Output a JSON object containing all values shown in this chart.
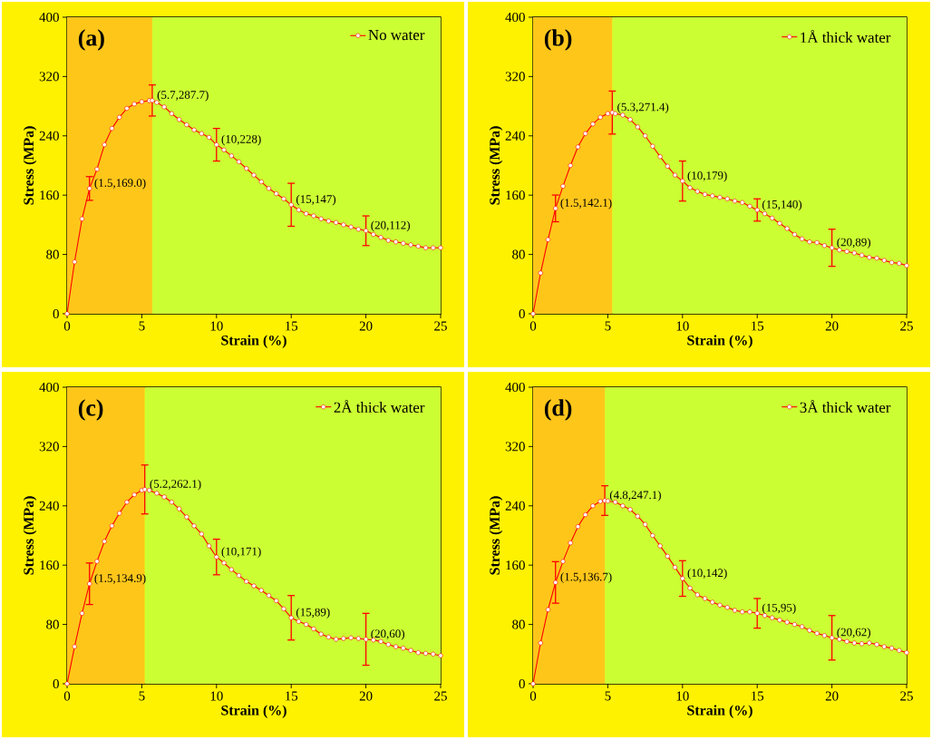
{
  "chart_data": [
    {
      "type": "line",
      "title": "(a)",
      "xlabel": "Strain (%)",
      "ylabel": "Stress (MPa)",
      "xlim": [
        0,
        25
      ],
      "ylim": [
        0,
        400
      ],
      "xticks": [
        0,
        5,
        10,
        15,
        20,
        25
      ],
      "yticks": [
        0,
        80,
        160,
        240,
        320,
        400
      ],
      "legend": "top right",
      "marker": "circle",
      "bands": [
        {
          "axis": "x",
          "from": 0,
          "to": 5.7,
          "color": "#ffc61a"
        },
        {
          "axis": "x",
          "from": 5.7,
          "to": 25,
          "color": "#ccff33"
        }
      ],
      "series": [
        {
          "name": "No water",
          "color": "#ff0000",
          "x": [
            0,
            0.5,
            1,
            1.5,
            2,
            2.5,
            3,
            3.5,
            4,
            4.5,
            5,
            5.5,
            5.7,
            6,
            6.5,
            7,
            7.5,
            8,
            8.5,
            9,
            9.5,
            10,
            10.5,
            11,
            11.5,
            12,
            12.5,
            13,
            13.5,
            14,
            14.5,
            15,
            15.5,
            16,
            16.5,
            17,
            17.5,
            18,
            18.5,
            19,
            19.5,
            20,
            20.5,
            21,
            21.5,
            22,
            22.5,
            23,
            23.5,
            24,
            24.5,
            25
          ],
          "values": [
            0,
            70,
            128,
            169,
            195,
            228,
            250,
            265,
            277,
            283,
            286,
            287.5,
            287.7,
            285,
            279,
            270,
            262,
            255,
            248,
            243,
            238,
            228,
            221,
            213,
            205,
            196,
            187,
            178,
            169,
            162,
            155,
            147,
            140,
            135,
            132,
            128,
            125,
            123,
            120,
            117,
            114,
            112,
            107,
            103,
            99,
            97,
            95,
            93,
            91,
            89,
            89,
            89
          ],
          "errors": [
            null,
            null,
            null,
            16,
            null,
            null,
            null,
            null,
            null,
            null,
            null,
            null,
            21,
            null,
            null,
            null,
            null,
            null,
            null,
            null,
            null,
            22,
            null,
            null,
            null,
            null,
            null,
            null,
            null,
            null,
            null,
            29,
            null,
            null,
            null,
            null,
            null,
            null,
            null,
            null,
            null,
            20,
            null,
            null,
            null,
            null,
            null,
            null,
            null,
            null,
            null,
            null
          ]
        }
      ],
      "annotations": [
        {
          "text": "(1.5,169.0)",
          "x": 1.5,
          "y": 169.0
        },
        {
          "text": "(5.7,287.7)",
          "x": 5.7,
          "y": 287.7
        },
        {
          "text": "(10,228)",
          "x": 10,
          "y": 228
        },
        {
          "text": "(15,147)",
          "x": 15,
          "y": 147
        },
        {
          "text": "(20,112)",
          "x": 20,
          "y": 112
        }
      ]
    },
    {
      "type": "line",
      "title": "(b)",
      "xlabel": "Strain (%)",
      "ylabel": "Stress (MPa)",
      "xlim": [
        0,
        25
      ],
      "ylim": [
        0,
        400
      ],
      "xticks": [
        0,
        5,
        10,
        15,
        20,
        25
      ],
      "yticks": [
        0,
        80,
        160,
        240,
        320,
        400
      ],
      "legend": "top right",
      "marker": "circle",
      "bands": [
        {
          "axis": "x",
          "from": 0,
          "to": 5.3,
          "color": "#ffc61a"
        },
        {
          "axis": "x",
          "from": 5.3,
          "to": 25,
          "color": "#ccff33"
        }
      ],
      "series": [
        {
          "name": "1Å thick water",
          "color": "#ff0000",
          "x": [
            0,
            0.5,
            1,
            1.5,
            2,
            2.5,
            3,
            3.5,
            4,
            4.5,
            5,
            5.3,
            5.5,
            6,
            6.5,
            7,
            7.5,
            8,
            8.5,
            9,
            9.5,
            10,
            10.5,
            11,
            11.5,
            12,
            12.5,
            13,
            13.5,
            14,
            14.5,
            15,
            15.5,
            16,
            16.5,
            17,
            17.5,
            18,
            18.5,
            19,
            19.5,
            20,
            20.5,
            21,
            21.5,
            22,
            22.5,
            23,
            23.5,
            24,
            24.5,
            25
          ],
          "values": [
            0,
            55,
            100,
            142.1,
            172,
            200,
            225,
            243,
            256,
            265,
            270,
            271.4,
            270,
            268,
            262,
            252,
            240,
            226,
            212,
            199,
            187,
            179,
            170,
            165,
            161,
            159,
            157,
            155,
            152,
            150,
            145,
            140,
            135,
            129,
            122,
            115,
            107,
            101,
            97,
            96,
            92,
            89,
            86,
            84,
            82,
            79,
            76,
            75,
            72,
            69,
            68,
            65
          ],
          "errors": [
            null,
            null,
            null,
            18,
            null,
            null,
            null,
            null,
            null,
            null,
            null,
            29,
            null,
            null,
            null,
            null,
            null,
            null,
            null,
            null,
            null,
            27,
            null,
            null,
            null,
            null,
            null,
            null,
            null,
            null,
            null,
            15,
            null,
            null,
            null,
            null,
            null,
            null,
            null,
            null,
            null,
            25,
            null,
            null,
            null,
            null,
            null,
            null,
            null,
            null,
            null,
            null
          ]
        }
      ],
      "annotations": [
        {
          "text": "(1.5,142.1)",
          "x": 1.5,
          "y": 142.1
        },
        {
          "text": "(5.3,271.4)",
          "x": 5.3,
          "y": 271.4
        },
        {
          "text": "(10,179)",
          "x": 10,
          "y": 179
        },
        {
          "text": "(15,140)",
          "x": 15,
          "y": 140
        },
        {
          "text": "(20,89)",
          "x": 20,
          "y": 89
        }
      ]
    },
    {
      "type": "line",
      "title": "(c)",
      "xlabel": "Strain (%)",
      "ylabel": "Stress (MPa)",
      "xlim": [
        0,
        25
      ],
      "ylim": [
        0,
        400
      ],
      "xticks": [
        0,
        5,
        10,
        15,
        20,
        25
      ],
      "yticks": [
        0,
        80,
        160,
        240,
        320,
        400
      ],
      "legend": "top right",
      "marker": "circle",
      "bands": [
        {
          "axis": "x",
          "from": 0,
          "to": 5.2,
          "color": "#ffc61a"
        },
        {
          "axis": "x",
          "from": 5.2,
          "to": 25,
          "color": "#ccff33"
        }
      ],
      "series": [
        {
          "name": "2Å thick water",
          "color": "#ff0000",
          "x": [
            0,
            0.5,
            1,
            1.5,
            2,
            2.5,
            3,
            3.5,
            4,
            4.5,
            5,
            5.2,
            5.5,
            6,
            6.5,
            7,
            7.5,
            8,
            8.5,
            9,
            9.5,
            10,
            10.5,
            11,
            11.5,
            12,
            12.5,
            13,
            13.5,
            14,
            14.5,
            15,
            15.5,
            16,
            16.5,
            17,
            17.5,
            18,
            18.5,
            19,
            19.5,
            20,
            20.5,
            21,
            21.5,
            22,
            22.5,
            23,
            23.5,
            24,
            24.5,
            25
          ],
          "values": [
            0,
            50,
            95,
            134.9,
            165,
            192,
            213,
            230,
            245,
            255,
            261,
            262.1,
            261,
            257,
            252,
            245,
            236,
            225,
            213,
            202,
            186,
            171,
            163,
            154,
            146,
            138,
            132,
            126,
            119,
            112,
            101,
            89,
            84,
            80,
            74,
            67,
            63,
            60,
            61,
            62,
            61,
            60,
            59,
            57,
            53,
            50,
            48,
            45,
            42,
            41,
            40,
            38
          ],
          "errors": [
            null,
            null,
            null,
            28,
            null,
            null,
            null,
            null,
            null,
            null,
            null,
            33,
            null,
            null,
            null,
            null,
            null,
            null,
            null,
            null,
            null,
            24,
            null,
            null,
            null,
            null,
            null,
            null,
            null,
            null,
            null,
            30,
            null,
            null,
            null,
            null,
            null,
            null,
            null,
            null,
            null,
            35,
            null,
            null,
            null,
            null,
            null,
            null,
            null,
            null,
            null,
            null
          ]
        }
      ],
      "annotations": [
        {
          "text": "(1.5,134.9)",
          "x": 1.5,
          "y": 134.9
        },
        {
          "text": "(5.2,262.1)",
          "x": 5.2,
          "y": 262.1
        },
        {
          "text": "(10,171)",
          "x": 10,
          "y": 171
        },
        {
          "text": "(15,89)",
          "x": 15,
          "y": 89
        },
        {
          "text": "(20,60)",
          "x": 20,
          "y": 60
        }
      ]
    },
    {
      "type": "line",
      "title": "(d)",
      "xlabel": "Strain (%)",
      "ylabel": "Stress (MPa)",
      "xlim": [
        0,
        25
      ],
      "ylim": [
        0,
        400
      ],
      "xticks": [
        0,
        5,
        10,
        15,
        20,
        25
      ],
      "yticks": [
        0,
        80,
        160,
        240,
        320,
        400
      ],
      "legend": "top right",
      "marker": "circle",
      "bands": [
        {
          "axis": "x",
          "from": 0,
          "to": 4.8,
          "color": "#ffc61a"
        },
        {
          "axis": "x",
          "from": 4.8,
          "to": 25,
          "color": "#ccff33"
        }
      ],
      "series": [
        {
          "name": "3Å thick water",
          "color": "#ff0000",
          "x": [
            0,
            0.5,
            1,
            1.5,
            2,
            2.5,
            3,
            3.5,
            4,
            4.5,
            4.8,
            5,
            5.5,
            6,
            6.5,
            7,
            7.5,
            8,
            8.5,
            9,
            9.5,
            10,
            10.5,
            11,
            11.5,
            12,
            12.5,
            13,
            13.5,
            14,
            14.5,
            15,
            15.5,
            16,
            16.5,
            17,
            17.5,
            18,
            18.5,
            19,
            19.5,
            20,
            20.5,
            21,
            21.5,
            22,
            22.5,
            23,
            23.5,
            24,
            24.5,
            25
          ],
          "values": [
            0,
            55,
            100,
            136.7,
            165,
            190,
            212,
            228,
            240,
            246,
            247.1,
            246.5,
            245,
            240,
            235,
            226,
            215,
            200,
            186,
            172,
            157,
            142,
            129,
            120,
            115,
            110,
            106,
            103,
            99,
            97,
            97,
            95,
            92,
            89,
            86,
            83,
            80,
            77,
            72,
            68,
            65,
            62,
            60,
            57,
            55,
            54,
            55,
            53,
            50,
            48,
            45,
            42
          ],
          "errors": [
            null,
            null,
            null,
            28,
            null,
            null,
            null,
            null,
            null,
            null,
            20,
            null,
            null,
            null,
            null,
            null,
            null,
            null,
            null,
            null,
            null,
            24,
            null,
            null,
            null,
            null,
            null,
            null,
            null,
            null,
            null,
            20,
            null,
            null,
            null,
            null,
            null,
            null,
            null,
            null,
            null,
            30,
            null,
            null,
            null,
            null,
            null,
            null,
            null,
            null,
            null,
            null
          ]
        }
      ],
      "annotations": [
        {
          "text": "(1.5,136.7)",
          "x": 1.5,
          "y": 136.7
        },
        {
          "text": "(4.8,247.1)",
          "x": 4.8,
          "y": 247.1
        },
        {
          "text": "(10,142)",
          "x": 10,
          "y": 142
        },
        {
          "text": "(15,95)",
          "x": 15,
          "y": 95
        },
        {
          "text": "(20,62)",
          "x": 20,
          "y": 62
        }
      ]
    }
  ]
}
